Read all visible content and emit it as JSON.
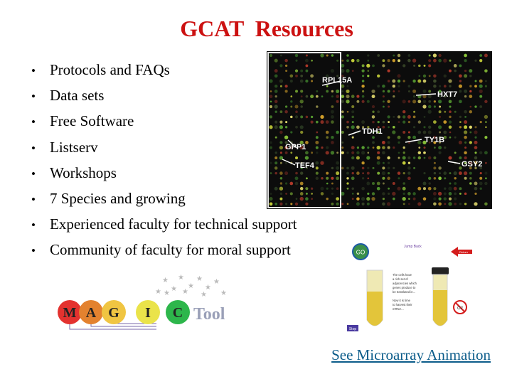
{
  "slide": {
    "title": "GCAT  Resources",
    "bullets": [
      "Protocols and FAQs",
      "Data sets",
      "Free Software",
      "Listserv",
      "Workshops",
      "7 Species and growing",
      "Experienced faculty for technical support",
      "Community of faculty for moral support"
    ],
    "bullet_glyph": "•",
    "link_text": "See Microarray Animation"
  },
  "array_image": {
    "gene_labels": [
      "RPL15A",
      "HXT7",
      "TDH1",
      "TY1B",
      "GPP1",
      "TEF4",
      "GSY2"
    ]
  },
  "animation_thumb": {
    "go_label": "GO",
    "jump_back": "Jump Back",
    "red_button": "Return",
    "text": "The cells have a rich set of adjacencies which genes produce to be translated in...",
    "o2_label": "O2",
    "stop_label": "Stop"
  },
  "magic_logo": {
    "letters": [
      "M",
      "A",
      "G",
      "I",
      "C"
    ],
    "tool_label": "Tool"
  },
  "colors": {
    "title": "#cc1111",
    "link": "#0b5c8a"
  }
}
